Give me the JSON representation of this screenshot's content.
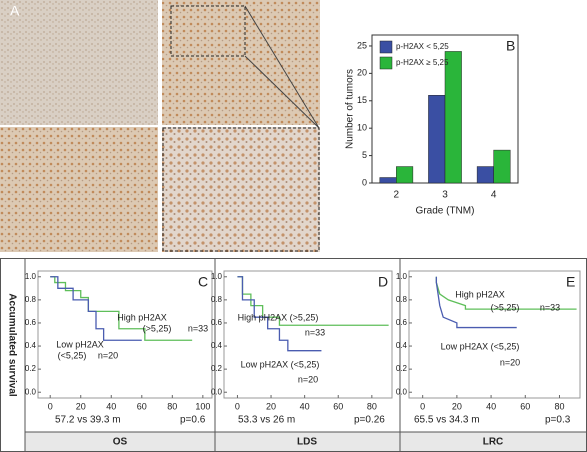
{
  "figure": {
    "panel_a_label": "A",
    "survival_axis_label": "Accumulated survival"
  },
  "chart_data": [
    {
      "type": "bar",
      "panel": "B",
      "y_label": "Number of tumors",
      "x_label": "Grade (TNM)",
      "categories": [
        "2",
        "3",
        "4"
      ],
      "series": [
        {
          "name": "p-H2AX < 5,25",
          "color": "#3a4fa3",
          "values": [
            1,
            16,
            3
          ]
        },
        {
          "name": "p-H2AX ≥ 5,25",
          "color": "#2ab53a",
          "values": [
            3,
            24,
            6
          ]
        }
      ],
      "ylim": [
        0,
        27
      ],
      "yticks": [
        0,
        5,
        10,
        15,
        20,
        25
      ],
      "legend": "top-left"
    },
    {
      "type": "step",
      "panel": "C",
      "category": "OS",
      "stat": "57.2 vs 39.3 m",
      "p": "p=0.6",
      "annotations": [
        "High pH2AX",
        "(>5,25)",
        "n=33",
        "Low pH2AX",
        "(<5,25)",
        "n=20"
      ],
      "series": [
        {
          "color": "#5fbf5a",
          "x": [
            0,
            3,
            3,
            10,
            10,
            20,
            20,
            25,
            25,
            45,
            45,
            62,
            62,
            93
          ],
          "values": [
            1,
            1,
            0.95,
            0.95,
            0.88,
            0.88,
            0.82,
            0.82,
            0.7,
            0.7,
            0.55,
            0.55,
            0.45,
            0.45
          ]
        },
        {
          "color": "#4a5cb0",
          "x": [
            0,
            5,
            5,
            15,
            15,
            25,
            25,
            30,
            30,
            35,
            35,
            60
          ],
          "values": [
            1,
            1,
            0.9,
            0.9,
            0.8,
            0.8,
            0.7,
            0.7,
            0.55,
            0.55,
            0.45,
            0.45
          ]
        }
      ],
      "xlim": [
        -8,
        106
      ],
      "xticks": [
        0,
        20,
        40,
        60,
        80,
        100
      ],
      "ylim": [
        -0.05,
        1.05
      ],
      "yticks": [
        {
          "value": 0,
          "label": "0.0"
        },
        0.2,
        0.4,
        0.6,
        0.8,
        {
          "value": 1,
          "label": "1.0"
        }
      ]
    },
    {
      "type": "step",
      "panel": "D",
      "category": "LDS",
      "stat": "53.3 vs 26 m",
      "p": "p=0.26",
      "annotations": [
        "High pH2AX (>5,25)",
        "n=33",
        "Low pH2AX (<5,25)",
        "n=20"
      ],
      "series": [
        {
          "color": "#5fbf5a",
          "x": [
            0,
            3,
            3,
            8,
            8,
            15,
            15,
            25,
            25,
            90
          ],
          "values": [
            1,
            1,
            0.85,
            0.85,
            0.75,
            0.75,
            0.65,
            0.65,
            0.58,
            0.58
          ]
        },
        {
          "color": "#4a5cb0",
          "x": [
            0,
            3,
            3,
            10,
            10,
            18,
            18,
            25,
            25,
            30,
            30,
            50
          ],
          "values": [
            1,
            1,
            0.8,
            0.8,
            0.65,
            0.65,
            0.55,
            0.55,
            0.45,
            0.45,
            0.36,
            0.36
          ]
        }
      ],
      "xlim": [
        -8,
        92
      ],
      "xticks": [
        0,
        20,
        40,
        60,
        80
      ],
      "ylim": [
        -0.05,
        1.05
      ],
      "yticks": [
        {
          "value": 0,
          "label": "0.0"
        },
        0.2,
        0.4,
        0.6,
        0.8,
        {
          "value": 1,
          "label": "1.0"
        }
      ]
    },
    {
      "type": "step",
      "panel": "E",
      "category": "LRC",
      "stat": "65.5 vs 34.3 m",
      "p": "p=0.3",
      "annotations": [
        "High pH2AX",
        "(>5,25)",
        "n=33",
        "Low pH2AX (<5,25)",
        "n=20"
      ],
      "series": [
        {
          "color": "#5fbf5a",
          "x": [
            8,
            8,
            8,
            10,
            10,
            15,
            15,
            25,
            25,
            90
          ],
          "values": [
            1,
            0.95,
            0.95,
            0.85,
            0.85,
            0.8,
            0.8,
            0.75,
            0.72,
            0.72
          ]
        },
        {
          "color": "#4a5cb0",
          "x": [
            8,
            8,
            8,
            10,
            10,
            12,
            12,
            20,
            20,
            55
          ],
          "values": [
            1,
            0.95,
            0.95,
            0.75,
            0.75,
            0.65,
            0.65,
            0.6,
            0.56,
            0.56
          ]
        }
      ],
      "xlim": [
        -8,
        92
      ],
      "xticks": [
        0,
        20,
        40,
        60,
        80
      ],
      "ylim": [
        -0.05,
        1.05
      ],
      "yticks": [
        {
          "value": 0,
          "label": "0.0"
        },
        0.2,
        0.4,
        0.6,
        0.8,
        {
          "value": 1,
          "label": "1.0"
        }
      ]
    }
  ]
}
